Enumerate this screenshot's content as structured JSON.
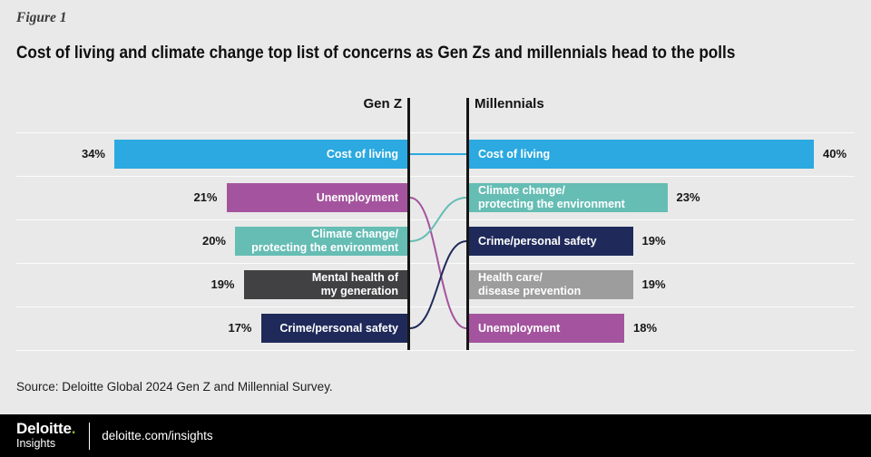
{
  "figure_label": "Figure 1",
  "title": "Cost of living and climate change top list of concerns as Gen Zs and millennials head to the polls",
  "source": "Source: Deloitte Global 2024 Gen Z and Millennial Survey.",
  "footer": {
    "brand": "Deloitte",
    "brand_dot": ".",
    "brand_sub": "Insights",
    "site": "deloitte.com/insights"
  },
  "chart_data": {
    "type": "bar",
    "subtype": "ranked-slope-comparison",
    "unit": "%",
    "layout": {
      "left_bars_grow": "leftward",
      "right_bars_grow": "rightward",
      "links": "bezier curves between the two axes"
    },
    "groups": [
      {
        "name": "Gen Z",
        "items": [
          {
            "label": "Cost of living",
            "value": 34,
            "value_label": "34%",
            "color": "#2BA9E0"
          },
          {
            "label": "Unemployment",
            "value": 21,
            "value_label": "21%",
            "color": "#A4549E"
          },
          {
            "label": "Climate change/\nprotecting the environment",
            "value": 20,
            "value_label": "20%",
            "color": "#65BDB4"
          },
          {
            "label": "Mental health of\nmy generation",
            "value": 19,
            "value_label": "19%",
            "color": "#414042"
          },
          {
            "label": "Crime/personal safety",
            "value": 17,
            "value_label": "17%",
            "color": "#1F2A5A"
          }
        ]
      },
      {
        "name": "Millennials",
        "items": [
          {
            "label": "Cost of living",
            "value": 40,
            "value_label": "40%",
            "color": "#2BA9E0"
          },
          {
            "label": "Climate change/\nprotecting the environment",
            "value": 23,
            "value_label": "23%",
            "color": "#65BDB4"
          },
          {
            "label": "Crime/personal safety",
            "value": 19,
            "value_label": "19%",
            "color": "#1F2A5A"
          },
          {
            "label": "Health care/\ndisease prevention",
            "value": 19,
            "value_label": "19%",
            "color": "#9D9D9D"
          },
          {
            "label": "Unemployment",
            "value": 18,
            "value_label": "18%",
            "color": "#A4549E"
          }
        ]
      }
    ],
    "links": [
      {
        "label": "Cost of living",
        "from_rank": 0,
        "to_rank": 0,
        "color": "#2BA9E0"
      },
      {
        "label": "Unemployment",
        "from_rank": 1,
        "to_rank": 4,
        "color": "#A4549E"
      },
      {
        "label": "Climate change/protecting the environment",
        "from_rank": 2,
        "to_rank": 1,
        "color": "#65BDB4"
      },
      {
        "label": "Crime/personal safety",
        "from_rank": 4,
        "to_rank": 2,
        "color": "#1F2A5A"
      }
    ]
  }
}
